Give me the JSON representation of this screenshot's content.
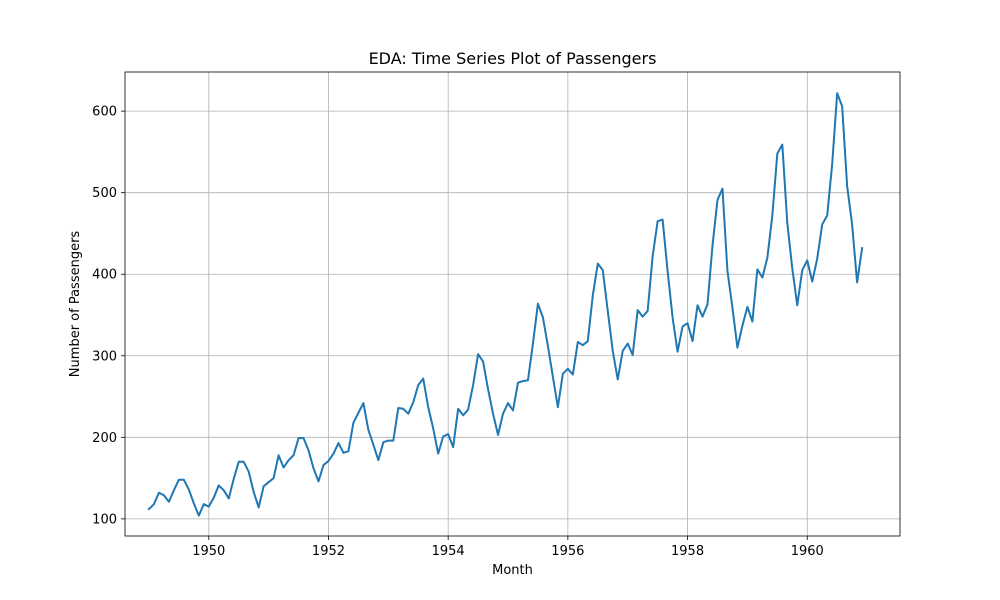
{
  "chart_data": {
    "type": "line",
    "title": "EDA: Time Series Plot of Passengers",
    "xlabel": "Month",
    "ylabel": "Number of Passengers",
    "x_start": "1949-01",
    "x_end": "1960-12",
    "xlim": [
      1948.6,
      1961.55
    ],
    "ylim": [
      79,
      648
    ],
    "x_ticks": [
      1950,
      1952,
      1954,
      1956,
      1958,
      1960
    ],
    "x_tick_labels": [
      "1950",
      "1952",
      "1954",
      "1956",
      "1958",
      "1960"
    ],
    "y_ticks": [
      100,
      200,
      300,
      400,
      500,
      600
    ],
    "y_tick_labels": [
      "100",
      "200",
      "300",
      "400",
      "500",
      "600"
    ],
    "grid": true,
    "color": "#1f77b4",
    "series": [
      {
        "values": [
          112,
          118,
          132,
          129,
          121,
          135,
          148,
          148,
          136,
          119,
          104,
          118,
          115,
          126,
          141,
          135,
          125,
          149,
          170,
          170,
          158,
          133,
          114,
          140,
          145,
          150,
          178,
          163,
          172,
          178,
          199,
          199,
          184,
          162,
          146,
          166,
          171,
          180,
          193,
          181,
          183,
          218,
          230,
          242,
          209,
          191,
          172,
          194,
          196,
          196,
          236,
          235,
          229,
          243,
          264,
          272,
          237,
          211,
          180,
          201,
          204,
          188,
          235,
          227,
          234,
          264,
          302,
          293,
          259,
          229,
          203,
          229,
          242,
          233,
          267,
          269,
          270,
          315,
          364,
          347,
          312,
          274,
          237,
          278,
          284,
          277,
          317,
          313,
          318,
          374,
          413,
          405,
          355,
          306,
          271,
          306,
          315,
          301,
          356,
          348,
          355,
          422,
          465,
          467,
          404,
          347,
          305,
          336,
          340,
          318,
          362,
          348,
          363,
          435,
          491,
          505,
          404,
          359,
          310,
          337,
          360,
          342,
          406,
          396,
          420,
          472,
          548,
          559,
          463,
          407,
          362,
          405,
          417,
          391,
          419,
          461,
          472,
          535,
          622,
          606,
          508,
          461,
          390,
          432
        ]
      }
    ]
  }
}
